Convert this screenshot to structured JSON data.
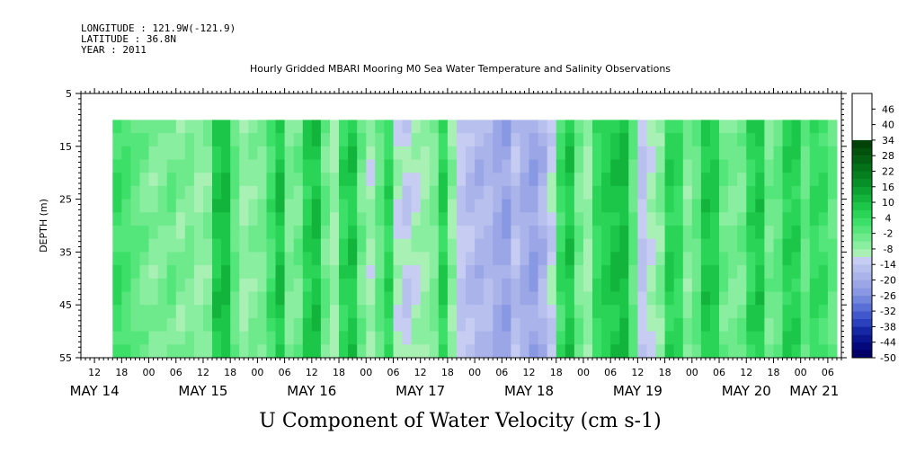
{
  "header": {
    "longitude": "LONGITUDE : 121.9W(-121.9)",
    "latitude": "LATITUDE : 36.8N",
    "year": "YEAR : 2011",
    "title": "Hourly Gridded MBARI Mooring M0 Sea Water Temperature and Salinity Observations"
  },
  "chart_data": {
    "type": "heatmap",
    "title": "Hourly Gridded MBARI Mooring M0 Sea Water Temperature and Salinity Observations",
    "xlabel": "U Component of Water Velocity (cm s-1)",
    "ylabel": "DEPTH (m)",
    "xlim_hours_from_may14_00": [
      9,
      177
    ],
    "data_extent_hours_from_may14_00": [
      16,
      175
    ],
    "ylim": [
      55,
      5
    ],
    "data_depth_range": [
      10,
      55
    ],
    "y_ticks": [
      5,
      15,
      25,
      35,
      45,
      55
    ],
    "x_hour_ticks": [
      "12",
      "18",
      "00",
      "06",
      "12",
      "18",
      "00",
      "06",
      "12",
      "18",
      "00",
      "06",
      "12",
      "18",
      "00",
      "06",
      "12",
      "18",
      "00",
      "06",
      "12",
      "18",
      "00",
      "06",
      "12",
      "18",
      "00",
      "06",
      "12",
      "18",
      "00",
      "06"
    ],
    "x_hour_tick_positions": [
      12,
      18,
      24,
      30,
      36,
      42,
      48,
      54,
      60,
      66,
      72,
      78,
      84,
      90,
      96,
      102,
      108,
      114,
      120,
      126,
      132,
      138,
      144,
      150,
      156,
      162,
      168,
      174,
      180,
      186,
      192,
      198
    ],
    "date_labels": [
      "MAY 14",
      "MAY 15",
      "MAY 16",
      "MAY 17",
      "MAY 18",
      "MAY 19",
      "MAY 20",
      "MAY 21"
    ],
    "date_label_positions": [
      12,
      36,
      60,
      84,
      108,
      132,
      156,
      171
    ],
    "colorbar": {
      "labels": [
        "46",
        "40",
        "34",
        "28",
        "22",
        "16",
        "10",
        "4",
        "-2",
        "-8",
        "-14",
        "-20",
        "-26",
        "-32",
        "-38",
        "-44",
        "-50"
      ],
      "min": -50,
      "max": 52,
      "step": 3,
      "colors_low_to_high": [
        "#000066",
        "#03087a",
        "#0a1690",
        "#1428a6",
        "#2a40bc",
        "#4058cc",
        "#5a70d6",
        "#7286dc",
        "#8898e2",
        "#9aa6e6",
        "#aab4ea",
        "#b8c0ee",
        "#c6ccf2",
        "#a8f0b4",
        "#8aeea0",
        "#6eea8c",
        "#54e67a",
        "#3cdf68",
        "#2ad456",
        "#1cc648",
        "#12b43c",
        "#0ca232",
        "#089028",
        "#06801f",
        "#047018",
        "#036012",
        "#02520e",
        "#024209"
      ]
    },
    "velocity_profile": {
      "hours": [
        16,
        18,
        20,
        22,
        24,
        26,
        28,
        30,
        32,
        34,
        36,
        38,
        40,
        42,
        44,
        46,
        48,
        50,
        52,
        54,
        56,
        58,
        60,
        62,
        64,
        66,
        68,
        70,
        72,
        74,
        76,
        78,
        80,
        82,
        84,
        86,
        88,
        90,
        92,
        94,
        96,
        98,
        100,
        102,
        104,
        106,
        108,
        110,
        112,
        114,
        116,
        118,
        120,
        122,
        124,
        126,
        128,
        130,
        132,
        134,
        136,
        138,
        140,
        142,
        144,
        146,
        148,
        150,
        152,
        154,
        156,
        158,
        160,
        162,
        164,
        166,
        168,
        170,
        172,
        174
      ],
      "u_cm_s": [
        3,
        1,
        -2,
        -4,
        -6,
        -5,
        -3,
        -6,
        -5,
        -8,
        -6,
        8,
        10,
        -2,
        -8,
        -6,
        -5,
        2,
        9,
        -5,
        -4,
        6,
        9,
        -3,
        -8,
        5,
        8,
        -4,
        -9,
        -2,
        5,
        -10,
        -13,
        -10,
        -8,
        -5,
        6,
        -7,
        -14,
        -16,
        -18,
        -17,
        -20,
        -22,
        -16,
        -20,
        -22,
        -18,
        -12,
        3,
        8,
        -4,
        -8,
        4,
        7,
        9,
        10,
        -2,
        -14,
        -10,
        -6,
        6,
        4,
        -6,
        -2,
        8,
        7,
        -3,
        -5,
        -4,
        5,
        8,
        -4,
        -2,
        6,
        6,
        -2,
        4,
        3,
        -2
      ]
    }
  }
}
